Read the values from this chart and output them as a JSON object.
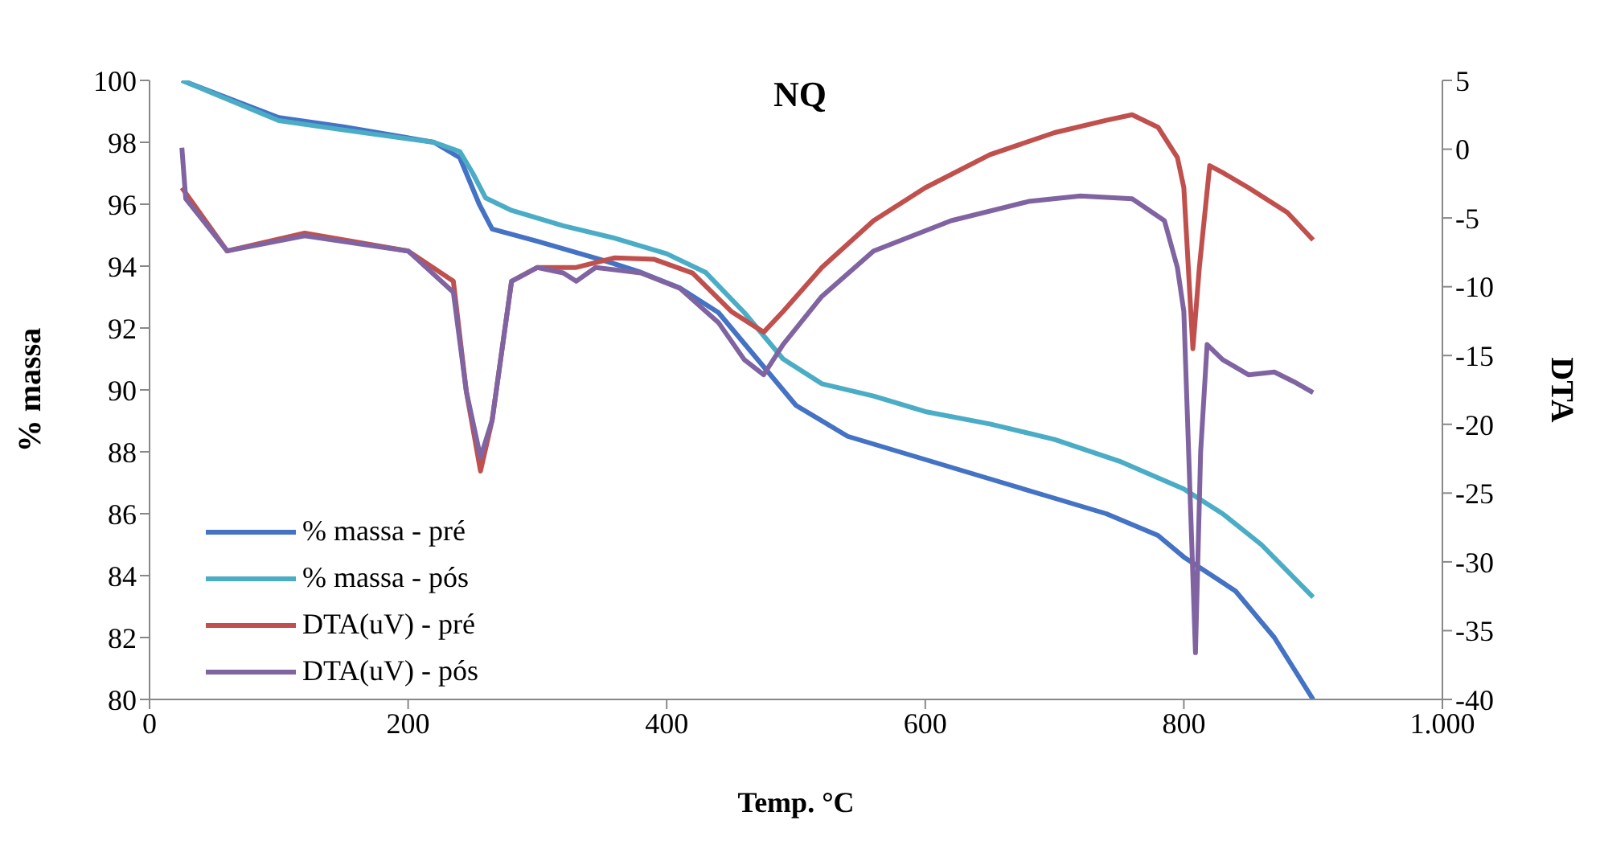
{
  "chart_data": {
    "type": "line",
    "title": "NQ",
    "xlabel": "Temp. °C",
    "ylabel": "% massa",
    "y2label": "DTA",
    "xlim": [
      0,
      1000
    ],
    "xticks": [
      0,
      200,
      400,
      600,
      800,
      {
        "value": 1000,
        "label": "1.000"
      }
    ],
    "ylim": [
      80,
      100
    ],
    "yticks": [
      80,
      82,
      84,
      86,
      88,
      90,
      92,
      94,
      96,
      98,
      100
    ],
    "y2lim": [
      -40,
      5
    ],
    "y2ticks": [
      -40,
      -35,
      -30,
      -25,
      -20,
      -15,
      -10,
      -5,
      0,
      5
    ],
    "grid": false,
    "legend": "bottom left",
    "marker": "none",
    "line_style": "solid",
    "series": [
      {
        "name": "% massa - pré",
        "color": "#4472c4",
        "x": [
          25,
          100,
          150,
          220,
          240,
          255,
          265,
          300,
          350,
          380,
          410,
          440,
          470,
          500,
          540,
          580,
          620,
          660,
          700,
          740,
          780,
          800,
          840,
          870,
          900
        ],
        "values": [
          100,
          98.8,
          98.5,
          98,
          97.5,
          96,
          95.2,
          94.8,
          94.2,
          93.8,
          93.3,
          92.5,
          91,
          89.5,
          88.5,
          88,
          87.5,
          87,
          86.5,
          86,
          85.3,
          84.6,
          83.5,
          82,
          80
        ]
      },
      {
        "name": "% massa - pós",
        "color": "#4bacc6",
        "x": [
          25,
          100,
          150,
          220,
          240,
          250,
          260,
          280,
          320,
          360,
          400,
          430,
          460,
          490,
          520,
          560,
          600,
          650,
          700,
          750,
          800,
          830,
          860,
          900
        ],
        "values": [
          100,
          98.7,
          98.4,
          98,
          97.7,
          97,
          96.2,
          95.8,
          95.3,
          94.9,
          94.4,
          93.8,
          92.5,
          91,
          90.2,
          89.8,
          89.3,
          88.9,
          88.4,
          87.7,
          86.8,
          86,
          85,
          83.3
        ]
      },
      {
        "name": "DTA(uV) - pré",
        "color": "#c0504d",
        "axis": "y2",
        "x": [
          25,
          60,
          120,
          200,
          235,
          245,
          256,
          265,
          280,
          300,
          330,
          360,
          390,
          420,
          450,
          475,
          490,
          520,
          560,
          600,
          650,
          700,
          740,
          760,
          780,
          795,
          800,
          807,
          812,
          820,
          830,
          850,
          880,
          900
        ],
        "values": [
          -2.8,
          -7.4,
          -6.1,
          -7.4,
          -9.6,
          -17.6,
          -23.4,
          -19.7,
          -9.6,
          -8.6,
          -8.6,
          -7.9,
          -8,
          -9,
          -11.8,
          -13.3,
          -11.8,
          -8.6,
          -5.2,
          -2.8,
          -0.4,
          1.2,
          2.1,
          2.5,
          1.6,
          -0.6,
          -2.8,
          -14.5,
          -8.6,
          -1.2,
          -1.7,
          -2.8,
          -4.6,
          -6.6
        ]
      },
      {
        "name": "DTA(uV) - pós",
        "color": "#8064a2",
        "axis": "y2",
        "x": [
          25,
          28,
          60,
          120,
          200,
          235,
          245,
          256,
          265,
          280,
          300,
          320,
          330,
          345,
          380,
          410,
          440,
          460,
          475,
          490,
          520,
          560,
          620,
          680,
          720,
          760,
          785,
          795,
          800,
          809,
          813,
          818,
          830,
          850,
          870,
          885,
          900
        ],
        "values": [
          0.1,
          -3.6,
          -7.4,
          -6.3,
          -7.4,
          -10.4,
          -17.6,
          -22.4,
          -19.7,
          -9.6,
          -8.6,
          -9,
          -9.6,
          -8.6,
          -9,
          -10.1,
          -12.6,
          -15.3,
          -16.4,
          -14.2,
          -10.7,
          -7.4,
          -5.2,
          -3.8,
          -3.4,
          -3.6,
          -5.2,
          -8.6,
          -11.8,
          -36.6,
          -22,
          -14.2,
          -15.3,
          -16.4,
          -16.2,
          -16.9,
          -17.7
        ]
      }
    ]
  }
}
